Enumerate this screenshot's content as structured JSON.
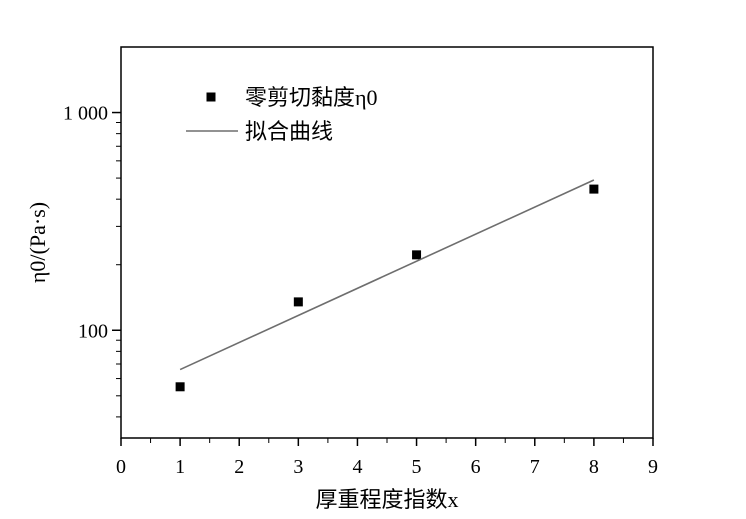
{
  "chart_data": {
    "type": "scatter",
    "xlabel": "厚重程度指数x",
    "ylabel": "η0/(Pa·s)",
    "xlim": [
      0,
      9
    ],
    "ylim": [
      32,
      2000
    ],
    "yscale": "log",
    "x_ticks": [
      "0",
      "1",
      "2",
      "3",
      "4",
      "5",
      "6",
      "7",
      "8",
      "9"
    ],
    "y_ticks": [
      {
        "value": 100,
        "label": "100"
      },
      {
        "value": 1000,
        "label": "1 000"
      }
    ],
    "legend_position": "top-left",
    "grid": false,
    "series": [
      {
        "name": "零剪切黏度η0",
        "kind": "scatter",
        "marker": "square",
        "color": "#000000",
        "points": [
          {
            "x": 1,
            "y": 55
          },
          {
            "x": 3,
            "y": 135
          },
          {
            "x": 5,
            "y": 222
          },
          {
            "x": 8,
            "y": 445
          }
        ]
      },
      {
        "name": "拟合曲线",
        "kind": "line",
        "color": "#6e6e6e",
        "points": [
          {
            "x": 1,
            "y": 66
          },
          {
            "x": 8,
            "y": 490
          }
        ]
      }
    ]
  }
}
